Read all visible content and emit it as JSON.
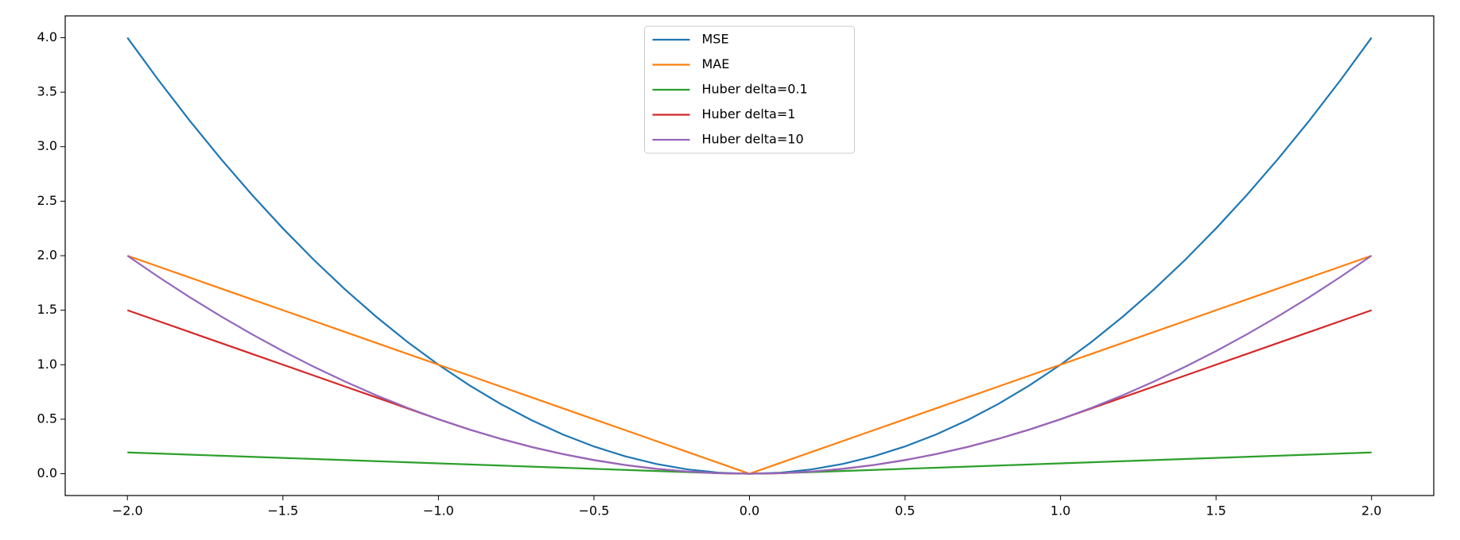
{
  "chart_data": {
    "type": "line",
    "x": [
      -2.0,
      -1.9,
      -1.8,
      -1.7,
      -1.6,
      -1.5,
      -1.4,
      -1.3,
      -1.2,
      -1.1,
      -1.0,
      -0.9,
      -0.8,
      -0.7,
      -0.6,
      -0.5,
      -0.4,
      -0.3,
      -0.2,
      -0.1,
      0.0,
      0.1,
      0.2,
      0.3,
      0.4,
      0.5,
      0.6,
      0.7,
      0.8,
      0.9,
      1.0,
      1.1,
      1.2,
      1.3,
      1.4,
      1.5,
      1.6,
      1.7,
      1.8,
      1.9,
      2.0
    ],
    "series": [
      {
        "name": "MSE",
        "color": "#1f77b4",
        "values": [
          4,
          3.61,
          3.24,
          2.89,
          2.56,
          2.25,
          1.96,
          1.69,
          1.44,
          1.21,
          1,
          0.81,
          0.64,
          0.49,
          0.36,
          0.25,
          0.16,
          0.09,
          0.04,
          0.01,
          0,
          0.01,
          0.04,
          0.09,
          0.16,
          0.25,
          0.36,
          0.49,
          0.64,
          0.81,
          1,
          1.21,
          1.44,
          1.69,
          1.96,
          2.25,
          2.56,
          2.89,
          3.24,
          3.61,
          4
        ]
      },
      {
        "name": "MAE",
        "color": "#ff7f0e",
        "values": [
          2,
          1.9,
          1.8,
          1.7,
          1.6,
          1.5,
          1.4,
          1.3,
          1.2,
          1.1,
          1,
          0.9,
          0.8,
          0.7,
          0.6,
          0.5,
          0.4,
          0.3,
          0.2,
          0.1,
          0,
          0.1,
          0.2,
          0.3,
          0.4,
          0.5,
          0.6,
          0.7,
          0.8,
          0.9,
          1,
          1.1,
          1.2,
          1.3,
          1.4,
          1.5,
          1.6,
          1.7,
          1.8,
          1.9,
          2
        ]
      },
      {
        "name": "Huber delta=0.1",
        "color": "#2ca02c",
        "values": [
          0.195,
          0.185,
          0.175,
          0.165,
          0.155,
          0.145,
          0.135,
          0.125,
          0.115,
          0.105,
          0.095,
          0.085,
          0.075,
          0.065,
          0.055,
          0.045,
          0.035,
          0.025,
          0.015,
          0.005,
          0,
          0.005,
          0.015,
          0.025,
          0.035,
          0.045,
          0.055,
          0.065,
          0.075,
          0.085,
          0.095,
          0.105,
          0.115,
          0.125,
          0.135,
          0.145,
          0.155,
          0.165,
          0.175,
          0.185,
          0.195
        ]
      },
      {
        "name": "Huber delta=1",
        "color": "#d62728",
        "values": [
          1.5,
          1.4,
          1.3,
          1.2,
          1.1,
          1.0,
          0.9,
          0.8,
          0.7,
          0.6,
          0.5,
          0.405,
          0.32,
          0.245,
          0.18,
          0.125,
          0.08,
          0.045,
          0.02,
          0.005,
          0,
          0.005,
          0.02,
          0.045,
          0.08,
          0.125,
          0.18,
          0.245,
          0.32,
          0.405,
          0.5,
          0.6,
          0.7,
          0.8,
          0.9,
          1.0,
          1.1,
          1.2,
          1.3,
          1.4,
          1.5
        ]
      },
      {
        "name": "Huber delta=10",
        "color": "#9467bd",
        "values": [
          2,
          1.805,
          1.62,
          1.445,
          1.28,
          1.125,
          0.98,
          0.845,
          0.72,
          0.605,
          0.5,
          0.405,
          0.32,
          0.245,
          0.18,
          0.125,
          0.08,
          0.045,
          0.02,
          0.005,
          0,
          0.005,
          0.02,
          0.045,
          0.08,
          0.125,
          0.18,
          0.245,
          0.32,
          0.405,
          0.5,
          0.605,
          0.72,
          0.845,
          0.98,
          1.125,
          1.28,
          1.445,
          1.62,
          1.805,
          2
        ]
      }
    ],
    "xlim": [
      -2.2,
      2.2
    ],
    "ylim": [
      -0.2,
      4.2
    ],
    "xticks": [
      {
        "value": -2,
        "label": "−2.0"
      },
      {
        "value": -1.5,
        "label": "−1.5"
      },
      {
        "value": -1,
        "label": "−1.0"
      },
      {
        "value": -0.5,
        "label": "−0.5"
      },
      {
        "value": 0,
        "label": "0.0"
      },
      0.5,
      {
        "value": 1,
        "label": "1.0"
      },
      1.5,
      {
        "value": 2,
        "label": "2.0"
      }
    ],
    "yticks": [
      {
        "value": 0,
        "label": "0.0"
      },
      0.5,
      {
        "value": 1,
        "label": "1.0"
      },
      1.5,
      {
        "value": 2,
        "label": "2.0"
      },
      2.5,
      {
        "value": 3,
        "label": "3.0"
      },
      3.5,
      {
        "value": 4,
        "label": "4.0"
      }
    ],
    "grid": false,
    "legend": "upper center"
  }
}
